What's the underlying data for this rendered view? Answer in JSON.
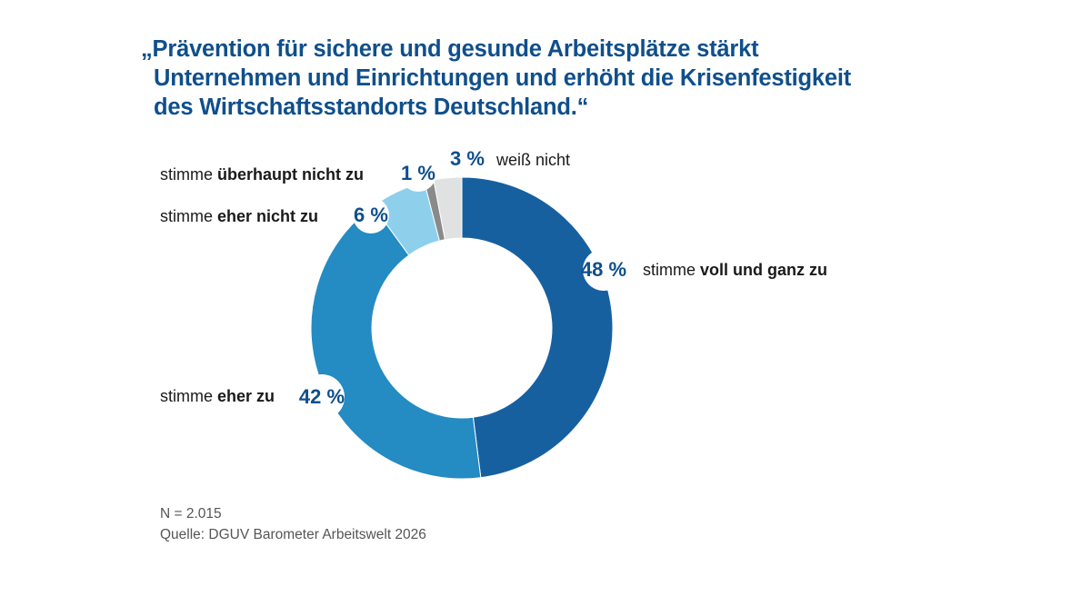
{
  "title_lines": [
    "„Prävention für sichere und gesunde Arbeitsplätze stärkt",
    "Unternehmen und Einrichtungen und erhöht die Krisenfestigkeit",
    "des Wirtschaftsstandorts Deutschland.“"
  ],
  "chart_data": {
    "type": "pie",
    "donut": true,
    "title": "„Prävention für sichere und gesunde Arbeitsplätze stärkt Unternehmen und Einrichtungen und erhöht die Krisenfestigkeit des Wirtschaftsstandorts Deutschland.“",
    "unit": "%",
    "slices": [
      {
        "label_prefix": "stimme ",
        "label_bold": "voll und ganz zu",
        "value": 48,
        "value_label": "48 %",
        "color": "#1760a0"
      },
      {
        "label_prefix": "stimme ",
        "label_bold": "eher zu",
        "value": 42,
        "value_label": "42 %",
        "color": "#248bc3"
      },
      {
        "label_prefix": "stimme ",
        "label_bold": "eher nicht zu",
        "value": 6,
        "value_label": "6 %",
        "color": "#8ed0ec"
      },
      {
        "label_prefix": "stimme ",
        "label_bold": "überhaupt nicht zu",
        "value": 1,
        "value_label": "1 %",
        "color": "#8a8a8a"
      },
      {
        "label_prefix": "weiß nicht",
        "label_bold": "",
        "value": 3,
        "value_label": "3 %",
        "color": "#e0e1e1"
      }
    ],
    "start_angle": "12 o'clock",
    "direction": "clockwise"
  },
  "footer": {
    "n": "N = 2.015",
    "source": "Quelle: DGUV Barometer Arbeitswelt 2026"
  }
}
